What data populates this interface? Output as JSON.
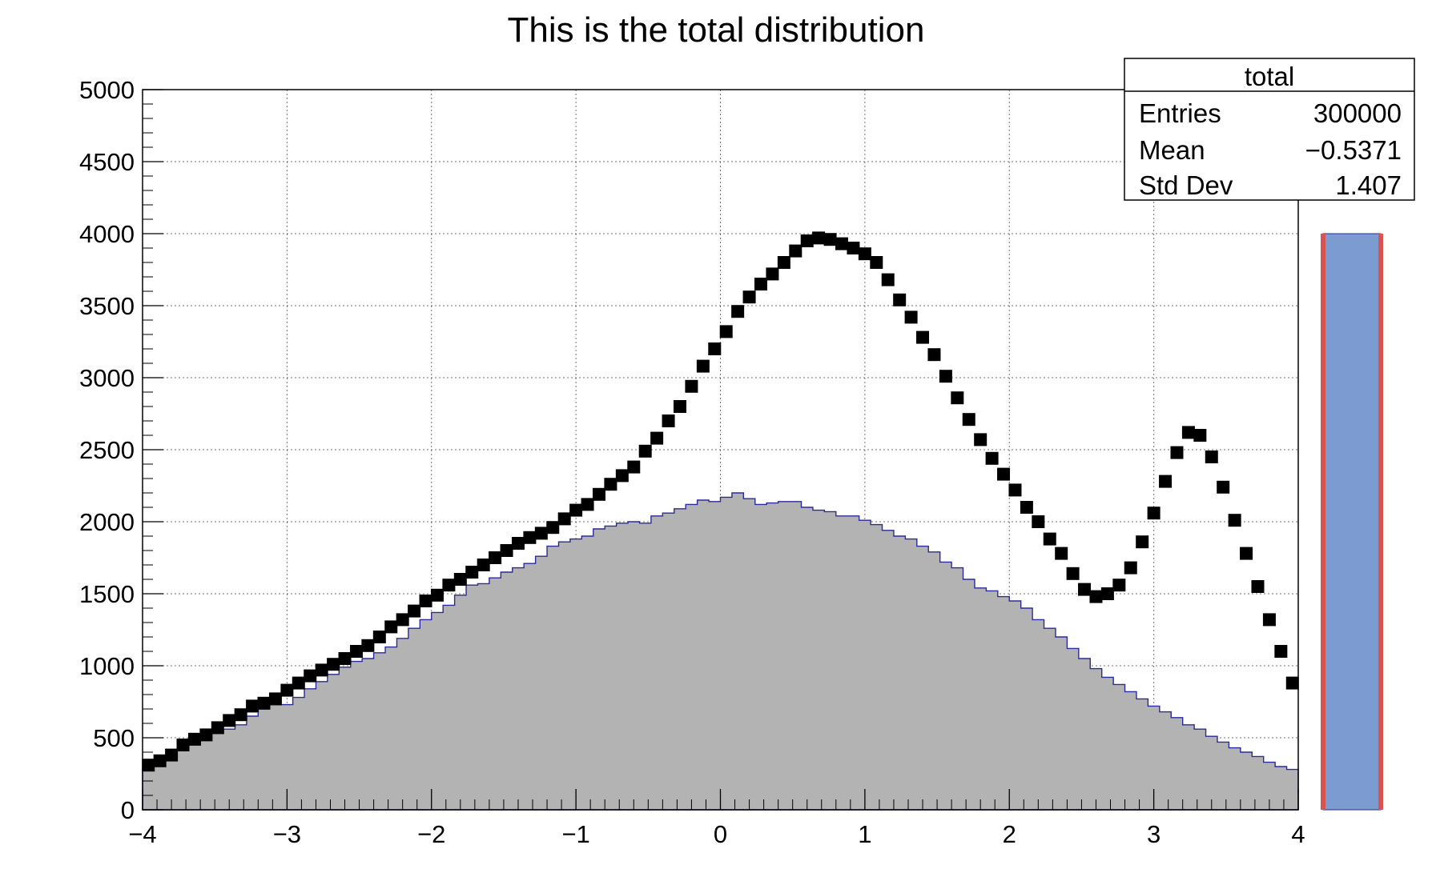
{
  "chart_data": {
    "type": "bar",
    "title": "This is the total distribution",
    "xlabel": "",
    "ylabel": "",
    "xlim": [
      -4,
      4
    ],
    "ylim": [
      0,
      5000
    ],
    "grid": true,
    "bins": 100,
    "x_ticks": [
      -4,
      -3,
      -2,
      -1,
      0,
      1,
      2,
      3,
      4
    ],
    "x_tick_labels": [
      "−4",
      "−3",
      "−2",
      "−1",
      "0",
      "1",
      "2",
      "3",
      "4"
    ],
    "y_ticks": [
      0,
      500,
      1000,
      1500,
      2000,
      2500,
      3000,
      3500,
      4000,
      4500,
      5000
    ],
    "y_tick_labels": [
      "0",
      "500",
      "1000",
      "1500",
      "2000",
      "2500",
      "3000",
      "3500",
      "4000",
      "4500",
      "5000"
    ],
    "colors": {
      "filled_histogram": "#b3b3b3",
      "histogram_outline": "#2a2a9a",
      "markers": "#000000",
      "error_bars": "#1a1a8a",
      "side_bar_fill": "#7b9bd1",
      "side_bar_edge": "#d9534f"
    },
    "series": [
      {
        "kind": "filled-step",
        "values": [
          300,
          330,
          350,
          410,
          450,
          490,
          530,
          560,
          590,
          650,
          700,
          730,
          730,
          780,
          840,
          890,
          940,
          990,
          1030,
          1050,
          1090,
          1130,
          1190,
          1260,
          1320,
          1370,
          1420,
          1490,
          1560,
          1570,
          1610,
          1650,
          1680,
          1710,
          1760,
          1830,
          1860,
          1880,
          1900,
          1950,
          1970,
          1990,
          2000,
          1990,
          2040,
          2060,
          2090,
          2120,
          2150,
          2140,
          2170,
          2200,
          2160,
          2120,
          2130,
          2140,
          2140,
          2100,
          2080,
          2070,
          2040,
          2040,
          2010,
          1980,
          1940,
          1900,
          1880,
          1830,
          1790,
          1720,
          1680,
          1600,
          1540,
          1520,
          1480,
          1450,
          1400,
          1320,
          1260,
          1200,
          1120,
          1050,
          980,
          920,
          870,
          820,
          770,
          720,
          680,
          640,
          590,
          560,
          510,
          470,
          430,
          400,
          370,
          330,
          300,
          280
        ]
      },
      {
        "kind": "error-bars",
        "values": [
          0,
          0,
          0,
          0,
          0,
          0,
          0,
          0,
          0,
          0,
          0,
          0,
          0,
          0,
          0,
          0,
          0,
          0,
          0,
          0,
          0,
          0,
          0,
          0,
          0,
          0,
          0,
          0,
          0,
          0,
          0,
          0,
          0,
          0,
          0,
          0,
          0,
          0,
          0,
          0,
          0,
          0,
          0,
          0,
          0,
          0,
          0,
          0,
          0,
          0,
          0,
          0,
          0,
          0,
          0,
          0,
          0,
          0,
          0,
          0,
          0,
          0,
          0,
          0,
          0,
          0,
          0,
          0,
          0,
          0,
          0,
          0,
          0,
          0,
          0,
          0,
          0,
          0,
          0,
          0,
          0,
          0,
          0,
          0,
          0,
          0,
          0,
          0,
          0,
          0,
          0,
          0,
          0,
          0,
          0,
          0,
          0,
          0,
          0,
          0
        ]
      },
      {
        "kind": "markers",
        "values": [
          310,
          340,
          380,
          450,
          490,
          520,
          570,
          620,
          660,
          720,
          740,
          770,
          830,
          880,
          930,
          970,
          1010,
          1050,
          1100,
          1140,
          1200,
          1270,
          1320,
          1380,
          1450,
          1490,
          1560,
          1600,
          1650,
          1700,
          1750,
          1800,
          1850,
          1890,
          1920,
          1960,
          2020,
          2080,
          2120,
          2190,
          2260,
          2320,
          2380,
          2490,
          2580,
          2700,
          2800,
          2940,
          3080,
          3200,
          3320,
          3460,
          3560,
          3650,
          3720,
          3800,
          3880,
          3950,
          3970,
          3960,
          3930,
          3900,
          3860,
          3800,
          3680,
          3540,
          3420,
          3280,
          3160,
          3010,
          2860,
          2710,
          2570,
          2440,
          2330,
          2220,
          2100,
          2000,
          1880,
          1780,
          1640,
          1530,
          1480,
          1500,
          1560,
          1680,
          1860,
          2060,
          2280,
          2480,
          2620,
          2600,
          2450,
          2240,
          2010,
          1780,
          1550,
          1320,
          1100,
          880
        ]
      }
    ],
    "side_bar": {
      "value": 4000
    }
  },
  "stats_box": {
    "title": "total",
    "rows": [
      {
        "label": "Entries",
        "value": "300000"
      },
      {
        "label": "Mean",
        "value": "−0.5371"
      },
      {
        "label": "Std Dev",
        "value": "1.407"
      }
    ]
  }
}
